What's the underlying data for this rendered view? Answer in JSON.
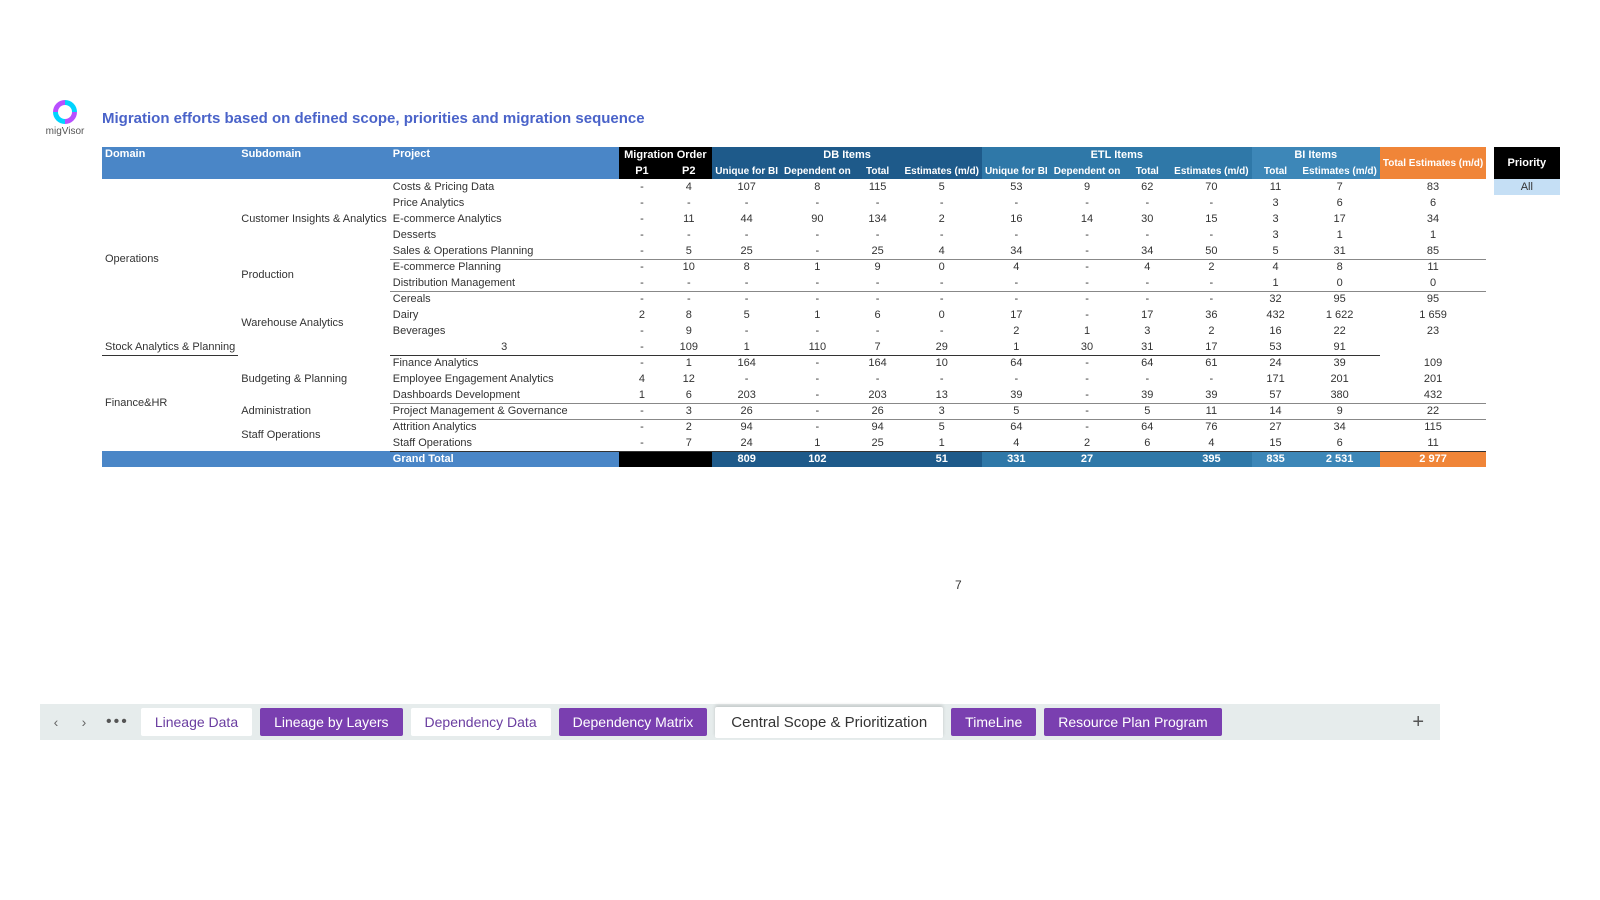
{
  "logo_text": "migVisor",
  "title": "Migration efforts based on defined scope, priorities and migration sequence",
  "page_number": "7",
  "headers": {
    "domain": "Domain",
    "subdomain": "Subdomain",
    "project": "Project",
    "mig_order": "Migration Order",
    "p1": "P1",
    "p2": "P2",
    "db_items": "DB Items",
    "etl_items": "ETL Items",
    "bi_items": "BI Items",
    "unique_bi": "Unique for BI",
    "dependent_on": "Dependent on",
    "total": "Total",
    "estimates": "Estimates (m/d)",
    "total_estimates": "Total Estimates (m/d)",
    "priority": "Priority",
    "all": "All"
  },
  "domains": [
    {
      "name": "Operations",
      "rowspan": 10,
      "subs": [
        {
          "name": "Customer Insights & Analytics",
          "rowspan": 5,
          "rows": [
            {
              "project": "Costs & Pricing Data",
              "p1": "-",
              "p2": "4",
              "db_u": "107",
              "db_d": "8",
              "db_t": "115",
              "db_e": "5",
              "etl_u": "53",
              "etl_d": "9",
              "etl_t": "62",
              "etl_e": "70",
              "bi_t": "11",
              "bi_e": "7",
              "tot": "83"
            },
            {
              "project": "Price Analytics",
              "p1": "-",
              "p2": "-",
              "db_u": "-",
              "db_d": "-",
              "db_t": "-",
              "db_e": "-",
              "etl_u": "-",
              "etl_d": "-",
              "etl_t": "-",
              "etl_e": "-",
              "bi_t": "3",
              "bi_e": "6",
              "tot": "6"
            },
            {
              "project": "E-commerce Analytics",
              "p1": "-",
              "p2": "11",
              "db_u": "44",
              "db_d": "90",
              "db_t": "134",
              "db_e": "2",
              "etl_u": "16",
              "etl_d": "14",
              "etl_t": "30",
              "etl_e": "15",
              "bi_t": "3",
              "bi_e": "17",
              "tot": "34"
            },
            {
              "project": "Desserts",
              "p1": "-",
              "p2": "-",
              "db_u": "-",
              "db_d": "-",
              "db_t": "-",
              "db_e": "-",
              "etl_u": "-",
              "etl_d": "-",
              "etl_t": "-",
              "etl_e": "-",
              "bi_t": "3",
              "bi_e": "1",
              "tot": "1"
            },
            {
              "project": "Sales & Operations Planning",
              "p1": "-",
              "p2": "5",
              "db_u": "25",
              "db_d": "-",
              "db_t": "25",
              "db_e": "4",
              "etl_u": "34",
              "etl_d": "-",
              "etl_t": "34",
              "etl_e": "50",
              "bi_t": "5",
              "bi_e": "31",
              "tot": "85",
              "last": true
            }
          ]
        },
        {
          "name": "Production",
          "rowspan": 2,
          "rows": [
            {
              "project": "E-commerce Planning",
              "p1": "-",
              "p2": "10",
              "db_u": "8",
              "db_d": "1",
              "db_t": "9",
              "db_e": "0",
              "etl_u": "4",
              "etl_d": "-",
              "etl_t": "4",
              "etl_e": "2",
              "bi_t": "4",
              "bi_e": "8",
              "tot": "11"
            },
            {
              "project": "Distribution Management",
              "p1": "-",
              "p2": "-",
              "db_u": "-",
              "db_d": "-",
              "db_t": "-",
              "db_e": "-",
              "etl_u": "-",
              "etl_d": "-",
              "etl_t": "-",
              "etl_e": "-",
              "bi_t": "1",
              "bi_e": "0",
              "tot": "0",
              "last": true
            }
          ]
        },
        {
          "name": "Warehouse Analytics",
          "rowspan": 4,
          "rows": [
            {
              "project": "Cereals",
              "p1": "-",
              "p2": "-",
              "db_u": "-",
              "db_d": "-",
              "db_t": "-",
              "db_e": "-",
              "etl_u": "-",
              "etl_d": "-",
              "etl_t": "-",
              "etl_e": "-",
              "bi_t": "32",
              "bi_e": "95",
              "tot": "95"
            },
            {
              "project": "Dairy",
              "p1": "2",
              "p2": "8",
              "db_u": "5",
              "db_d": "1",
              "db_t": "6",
              "db_e": "0",
              "etl_u": "17",
              "etl_d": "-",
              "etl_t": "17",
              "etl_e": "36",
              "bi_t": "432",
              "bi_e": "1 622",
              "tot": "1 659"
            },
            {
              "project": "Beverages",
              "p1": "-",
              "p2": "9",
              "db_u": "-",
              "db_d": "-",
              "db_t": "-",
              "db_e": "-",
              "etl_u": "2",
              "etl_d": "1",
              "etl_t": "3",
              "etl_e": "2",
              "bi_t": "16",
              "bi_e": "22",
              "tot": "23"
            },
            {
              "project": "Stock Analytics & Planning",
              "p1": "3",
              "p2": "-",
              "db_u": "109",
              "db_d": "1",
              "db_t": "110",
              "db_e": "7",
              "etl_u": "29",
              "etl_d": "1",
              "etl_t": "30",
              "etl_e": "31",
              "bi_t": "17",
              "bi_e": "53",
              "tot": "91",
              "domlast": true
            }
          ]
        }
      ]
    },
    {
      "name": "Finance&HR",
      "rowspan": 6,
      "subs": [
        {
          "name": "Budgeting & Planning",
          "rowspan": 3,
          "rows": [
            {
              "project": "Finance Analytics",
              "p1": "-",
              "p2": "1",
              "db_u": "164",
              "db_d": "-",
              "db_t": "164",
              "db_e": "10",
              "etl_u": "64",
              "etl_d": "-",
              "etl_t": "64",
              "etl_e": "61",
              "bi_t": "24",
              "bi_e": "39",
              "tot": "109"
            },
            {
              "project": "Employee Engagement Analytics",
              "p1": "4",
              "p2": "12",
              "db_u": "-",
              "db_d": "-",
              "db_t": "-",
              "db_e": "-",
              "etl_u": "-",
              "etl_d": "-",
              "etl_t": "-",
              "etl_e": "-",
              "bi_t": "171",
              "bi_e": "201",
              "tot": "201"
            },
            {
              "project": "Dashboards Development",
              "p1": "1",
              "p2": "6",
              "db_u": "203",
              "db_d": "-",
              "db_t": "203",
              "db_e": "13",
              "etl_u": "39",
              "etl_d": "-",
              "etl_t": "39",
              "etl_e": "39",
              "bi_t": "57",
              "bi_e": "380",
              "tot": "432",
              "last": true
            }
          ]
        },
        {
          "name": "Administration",
          "rowspan": 1,
          "rows": [
            {
              "project": "Project Management & Governance",
              "p1": "-",
              "p2": "3",
              "db_u": "26",
              "db_d": "-",
              "db_t": "26",
              "db_e": "3",
              "etl_u": "5",
              "etl_d": "-",
              "etl_t": "5",
              "etl_e": "11",
              "bi_t": "14",
              "bi_e": "9",
              "tot": "22",
              "last": true
            }
          ]
        },
        {
          "name": "Staff Operations",
          "rowspan": 2,
          "rows": [
            {
              "project": "Attrition Analytics",
              "p1": "-",
              "p2": "2",
              "db_u": "94",
              "db_d": "-",
              "db_t": "94",
              "db_e": "5",
              "etl_u": "64",
              "etl_d": "-",
              "etl_t": "64",
              "etl_e": "76",
              "bi_t": "27",
              "bi_e": "34",
              "tot": "115"
            },
            {
              "project": "Staff Operations",
              "p1": "-",
              "p2": "7",
              "db_u": "24",
              "db_d": "1",
              "db_t": "25",
              "db_e": "1",
              "etl_u": "4",
              "etl_d": "2",
              "etl_t": "6",
              "etl_e": "4",
              "bi_t": "15",
              "bi_e": "6",
              "tot": "11",
              "domlast": true
            }
          ]
        }
      ]
    }
  ],
  "grand": {
    "label": "Grand Total",
    "db_u": "809",
    "db_d": "102",
    "db_t": "",
    "db_e": "51",
    "etl_u": "331",
    "etl_d": "27",
    "etl_t": "",
    "etl_e": "395",
    "bi_t": "835",
    "bi_e": "2 531",
    "tot": "2 977"
  },
  "tabs": {
    "lineage_data": "Lineage Data",
    "lineage_layers": "Lineage by Layers",
    "dependency_data": "Dependency Data",
    "dependency_matrix": "Dependency Matrix",
    "central_scope": "Central Scope & Prioritization",
    "timeline": "TimeLine",
    "resource_plan": "Resource Plan Program"
  }
}
